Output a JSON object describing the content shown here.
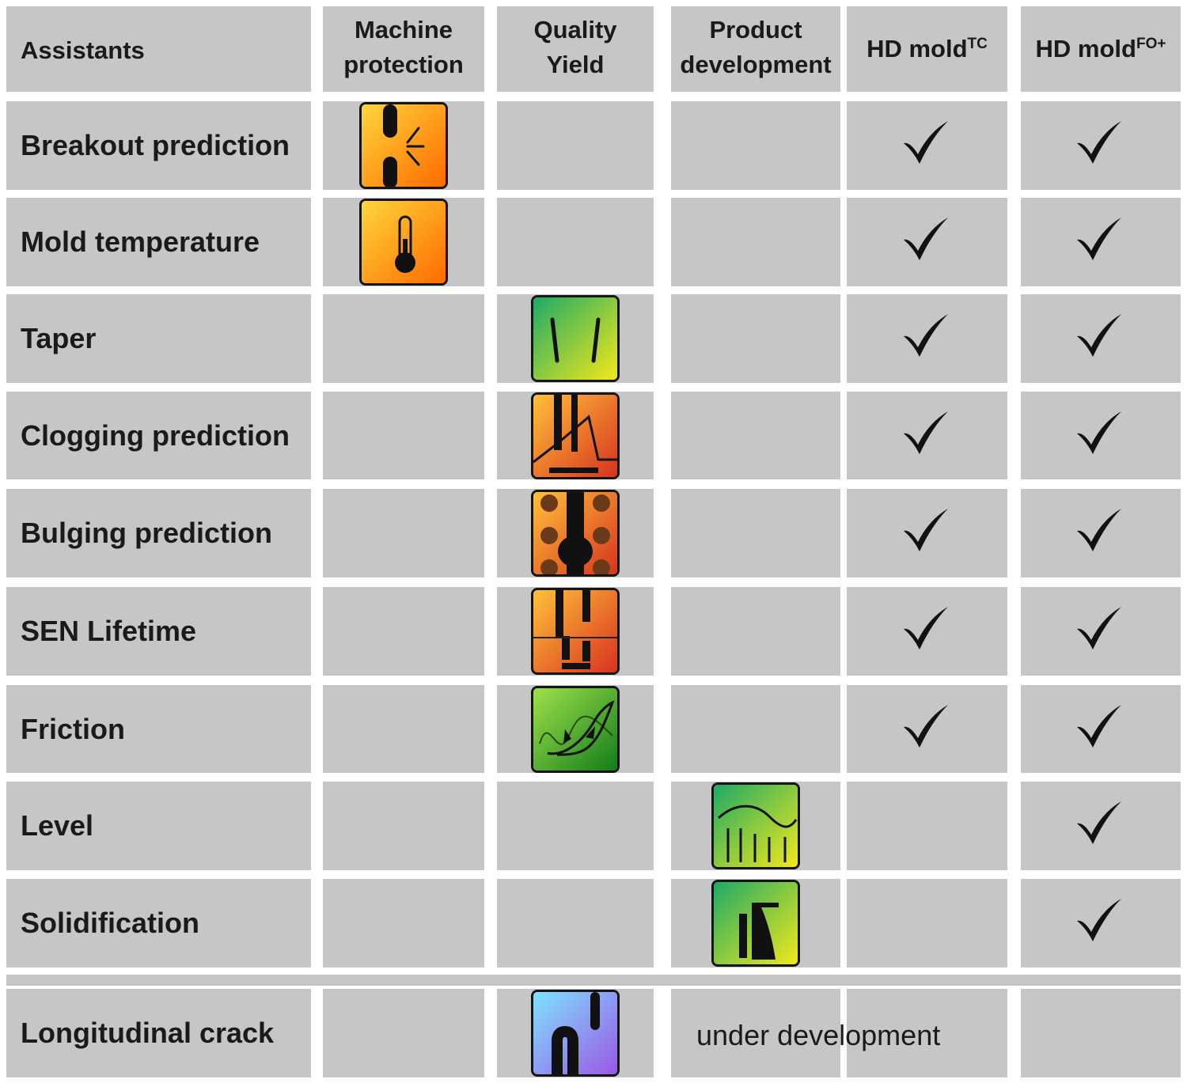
{
  "header": {
    "assistants": "Assistants",
    "machine_protection": [
      "Machine",
      "protection"
    ],
    "quality_yield": [
      "Quality",
      "Yield"
    ],
    "product_development": [
      "Product",
      "development"
    ],
    "hd_mold_tc": {
      "base": "HD mold",
      "sup": "TC"
    },
    "hd_mold_fo": {
      "base": "HD mold",
      "sup": "FO+"
    }
  },
  "rows": [
    {
      "label": "Breakout prediction",
      "category": "machine_protection",
      "icon": "breakout-icon",
      "tc": true,
      "fo": true
    },
    {
      "label": "Mold temperature",
      "category": "machine_protection",
      "icon": "thermometer-icon",
      "tc": true,
      "fo": true
    },
    {
      "label": "Taper",
      "category": "quality_yield",
      "icon": "taper-icon",
      "tc": true,
      "fo": true
    },
    {
      "label": "Clogging prediction",
      "category": "quality_yield",
      "icon": "clogging-icon",
      "tc": true,
      "fo": true
    },
    {
      "label": "Bulging prediction",
      "category": "quality_yield",
      "icon": "bulging-icon",
      "tc": true,
      "fo": true
    },
    {
      "label": "SEN Lifetime",
      "category": "quality_yield",
      "icon": "sen-lifetime-icon",
      "tc": true,
      "fo": true
    },
    {
      "label": "Friction",
      "category": "quality_yield",
      "icon": "friction-icon",
      "tc": true,
      "fo": true
    },
    {
      "label": "Level",
      "category": "product_development",
      "icon": "level-icon",
      "tc": false,
      "fo": true
    },
    {
      "label": "Solidification",
      "category": "product_development",
      "icon": "solidification-icon",
      "tc": false,
      "fo": true
    }
  ],
  "longitudinal": {
    "label": "Longitudinal crack",
    "category": "quality_yield",
    "icon": "longitudinal-crack-icon",
    "note": "under development"
  },
  "colors": {
    "cell": "#c6c6c6",
    "orange_top": "#ffd23a",
    "orange_bottom": "#ff7a00",
    "green": "#1fb25a",
    "yellow": "#e8e81c"
  }
}
